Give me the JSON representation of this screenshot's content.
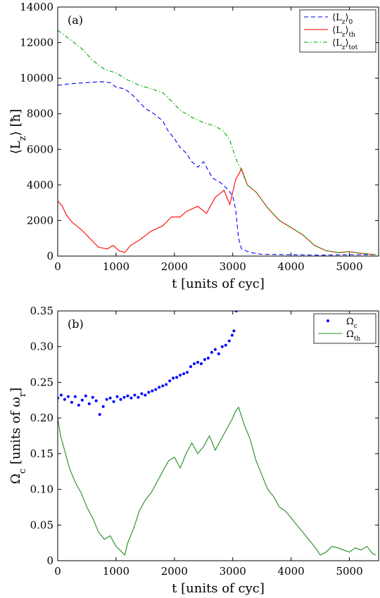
{
  "chart_data": [
    {
      "type": "line",
      "panel_label": "(a)",
      "xlabel": "t [units of cyc]",
      "ylabel": "⟨L_z⟩ [ħ]",
      "xlim": [
        0,
        5500
      ],
      "ylim": [
        0,
        14000
      ],
      "xticks": [
        0,
        1000,
        2000,
        3000,
        4000,
        5000
      ],
      "yticks": [
        0,
        2000,
        4000,
        6000,
        8000,
        10000,
        12000,
        14000
      ],
      "grid": false,
      "legend_position": "top-right",
      "series": [
        {
          "name": "⟨L_z⟩_0",
          "color": "#0000ff",
          "style": "dashed",
          "points": [
            [
              0,
              9600
            ],
            [
              250,
              9700
            ],
            [
              500,
              9750
            ],
            [
              750,
              9800
            ],
            [
              900,
              9750
            ],
            [
              1000,
              9500
            ],
            [
              1150,
              9400
            ],
            [
              1300,
              9000
            ],
            [
              1500,
              8300
            ],
            [
              1650,
              8000
            ],
            [
              1800,
              7600
            ],
            [
              1900,
              7000
            ],
            [
              2000,
              6600
            ],
            [
              2100,
              6100
            ],
            [
              2200,
              5800
            ],
            [
              2300,
              5300
            ],
            [
              2400,
              5000
            ],
            [
              2500,
              5300
            ],
            [
              2650,
              4400
            ],
            [
              2800,
              4100
            ],
            [
              2900,
              3800
            ],
            [
              3000,
              3400
            ],
            [
              3050,
              2600
            ],
            [
              3100,
              1000
            ],
            [
              3150,
              400
            ],
            [
              3300,
              200
            ],
            [
              3500,
              100
            ],
            [
              4000,
              80
            ],
            [
              4500,
              50
            ],
            [
              5000,
              80
            ],
            [
              5450,
              80
            ]
          ]
        },
        {
          "name": "⟨L_z⟩_th",
          "color": "#ff0000",
          "style": "solid",
          "points": [
            [
              0,
              3100
            ],
            [
              80,
              2800
            ],
            [
              150,
              2300
            ],
            [
              250,
              1900
            ],
            [
              400,
              1500
            ],
            [
              550,
              1000
            ],
            [
              700,
              500
            ],
            [
              850,
              400
            ],
            [
              950,
              600
            ],
            [
              1050,
              300
            ],
            [
              1150,
              200
            ],
            [
              1250,
              600
            ],
            [
              1400,
              900
            ],
            [
              1600,
              1400
            ],
            [
              1800,
              1700
            ],
            [
              1950,
              2200
            ],
            [
              2100,
              2200
            ],
            [
              2200,
              2500
            ],
            [
              2400,
              2800
            ],
            [
              2550,
              2400
            ],
            [
              2700,
              3300
            ],
            [
              2850,
              3700
            ],
            [
              2950,
              2900
            ],
            [
              3050,
              4300
            ],
            [
              3150,
              4900
            ],
            [
              3250,
              4000
            ],
            [
              3400,
              3600
            ],
            [
              3600,
              2700
            ],
            [
              3800,
              2000
            ],
            [
              4000,
              1600
            ],
            [
              4200,
              1200
            ],
            [
              4400,
              600
            ],
            [
              4600,
              300
            ],
            [
              4800,
              200
            ],
            [
              5000,
              250
            ],
            [
              5200,
              150
            ],
            [
              5450,
              80
            ]
          ]
        },
        {
          "name": "⟨L_z⟩_tot",
          "color": "#00aa00",
          "style": "dashdot",
          "points": [
            [
              0,
              12700
            ],
            [
              200,
              12200
            ],
            [
              400,
              11700
            ],
            [
              600,
              11000
            ],
            [
              800,
              10500
            ],
            [
              1000,
              10300
            ],
            [
              1200,
              9900
            ],
            [
              1400,
              9600
            ],
            [
              1600,
              9400
            ],
            [
              1800,
              9200
            ],
            [
              1950,
              8700
            ],
            [
              2100,
              8200
            ],
            [
              2300,
              7800
            ],
            [
              2500,
              7500
            ],
            [
              2700,
              7300
            ],
            [
              2850,
              7000
            ],
            [
              2950,
              6500
            ],
            [
              3050,
              5500
            ],
            [
              3150,
              4800
            ],
            [
              3250,
              4000
            ],
            [
              3400,
              3600
            ],
            [
              3600,
              2700
            ],
            [
              3800,
              2000
            ],
            [
              4000,
              1600
            ],
            [
              4200,
              1200
            ],
            [
              4400,
              600
            ],
            [
              4600,
              300
            ],
            [
              4800,
              200
            ],
            [
              5000,
              250
            ],
            [
              5200,
              150
            ],
            [
              5450,
              80
            ]
          ]
        }
      ]
    },
    {
      "type": "scatter",
      "panel_label": "(b)",
      "xlabel": "t [units of cyc]",
      "ylabel": "Ω_c [units of ω_r]",
      "xlim": [
        0,
        5500
      ],
      "ylim": [
        0,
        0.35
      ],
      "xticks": [
        0,
        1000,
        2000,
        3000,
        4000,
        5000
      ],
      "ytick_labels": [
        "0",
        "0.05",
        "0.10",
        "0.15",
        "0.20",
        "0.25",
        "0.30",
        "0.35"
      ],
      "yticks": [
        0,
        0.05,
        0.1,
        0.15,
        0.2,
        0.25,
        0.3,
        0.35
      ],
      "grid": false,
      "legend_position": "top-right",
      "series": [
        {
          "name": "Ω_c",
          "color": "#0000ff",
          "style": "markers",
          "points": [
            [
              0,
              0.228
            ],
            [
              60,
              0.232
            ],
            [
              120,
              0.226
            ],
            [
              180,
              0.23
            ],
            [
              240,
              0.222
            ],
            [
              300,
              0.23
            ],
            [
              360,
              0.218
            ],
            [
              420,
              0.225
            ],
            [
              480,
              0.231
            ],
            [
              540,
              0.22
            ],
            [
              600,
              0.229
            ],
            [
              660,
              0.224
            ],
            [
              720,
              0.205
            ],
            [
              780,
              0.216
            ],
            [
              840,
              0.226
            ],
            [
              900,
              0.228
            ],
            [
              960,
              0.223
            ],
            [
              1020,
              0.23
            ],
            [
              1080,
              0.226
            ],
            [
              1140,
              0.229
            ],
            [
              1200,
              0.231
            ],
            [
              1260,
              0.228
            ],
            [
              1320,
              0.232
            ],
            [
              1380,
              0.229
            ],
            [
              1440,
              0.234
            ],
            [
              1500,
              0.232
            ],
            [
              1560,
              0.236
            ],
            [
              1620,
              0.238
            ],
            [
              1680,
              0.24
            ],
            [
              1740,
              0.243
            ],
            [
              1800,
              0.245
            ],
            [
              1860,
              0.247
            ],
            [
              1920,
              0.252
            ],
            [
              1980,
              0.256
            ],
            [
              2040,
              0.257
            ],
            [
              2100,
              0.26
            ],
            [
              2160,
              0.262
            ],
            [
              2220,
              0.264
            ],
            [
              2280,
              0.272
            ],
            [
              2340,
              0.276
            ],
            [
              2400,
              0.278
            ],
            [
              2460,
              0.276
            ],
            [
              2520,
              0.282
            ],
            [
              2580,
              0.284
            ],
            [
              2640,
              0.292
            ],
            [
              2700,
              0.296
            ],
            [
              2760,
              0.29
            ],
            [
              2820,
              0.3
            ],
            [
              2880,
              0.302
            ],
            [
              2940,
              0.308
            ],
            [
              2990,
              0.316
            ],
            [
              3020,
              0.322
            ],
            [
              3060,
              0.35
            ]
          ]
        },
        {
          "name": "Ω_th",
          "color": "#228b22",
          "style": "solid",
          "points": [
            [
              0,
              0.2
            ],
            [
              50,
              0.175
            ],
            [
              100,
              0.16
            ],
            [
              200,
              0.13
            ],
            [
              300,
              0.11
            ],
            [
              400,
              0.095
            ],
            [
              500,
              0.075
            ],
            [
              600,
              0.06
            ],
            [
              700,
              0.04
            ],
            [
              800,
              0.03
            ],
            [
              900,
              0.035
            ],
            [
              1000,
              0.02
            ],
            [
              1100,
              0.012
            ],
            [
              1150,
              0.008
            ],
            [
              1200,
              0.025
            ],
            [
              1300,
              0.045
            ],
            [
              1400,
              0.07
            ],
            [
              1500,
              0.085
            ],
            [
              1600,
              0.095
            ],
            [
              1700,
              0.11
            ],
            [
              1800,
              0.125
            ],
            [
              1900,
              0.14
            ],
            [
              2000,
              0.145
            ],
            [
              2100,
              0.13
            ],
            [
              2200,
              0.15
            ],
            [
              2300,
              0.165
            ],
            [
              2400,
              0.15
            ],
            [
              2500,
              0.16
            ],
            [
              2600,
              0.175
            ],
            [
              2700,
              0.155
            ],
            [
              2800,
              0.17
            ],
            [
              2900,
              0.185
            ],
            [
              3000,
              0.2
            ],
            [
              3050,
              0.21
            ],
            [
              3100,
              0.215
            ],
            [
              3200,
              0.19
            ],
            [
              3300,
              0.17
            ],
            [
              3400,
              0.14
            ],
            [
              3500,
              0.12
            ],
            [
              3600,
              0.1
            ],
            [
              3700,
              0.09
            ],
            [
              3800,
              0.075
            ],
            [
              3900,
              0.07
            ],
            [
              4000,
              0.06
            ],
            [
              4100,
              0.05
            ],
            [
              4200,
              0.04
            ],
            [
              4300,
              0.03
            ],
            [
              4400,
              0.02
            ],
            [
              4500,
              0.008
            ],
            [
              4600,
              0.012
            ],
            [
              4700,
              0.02
            ],
            [
              4800,
              0.018
            ],
            [
              4900,
              0.015
            ],
            [
              5000,
              0.012
            ],
            [
              5100,
              0.018
            ],
            [
              5200,
              0.015
            ],
            [
              5300,
              0.02
            ],
            [
              5400,
              0.01
            ],
            [
              5450,
              0.008
            ]
          ]
        }
      ]
    }
  ]
}
